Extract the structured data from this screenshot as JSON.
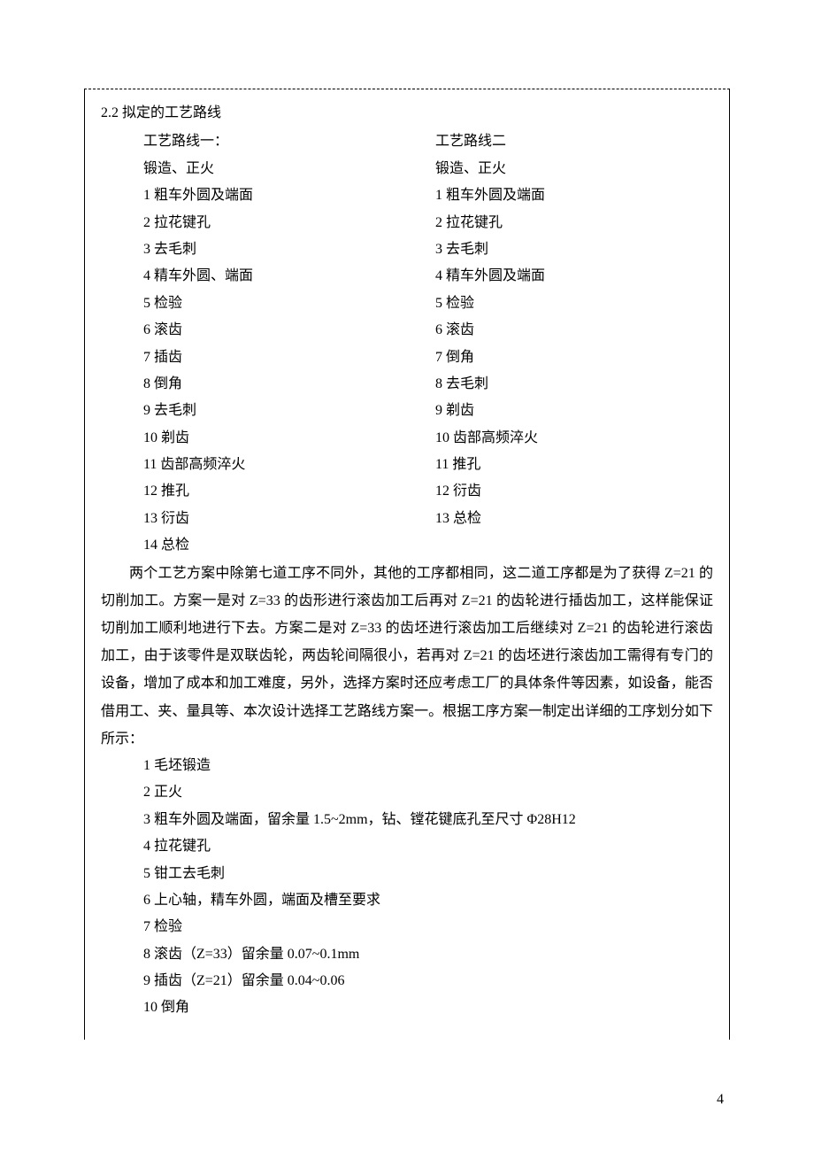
{
  "section_title": "2.2 拟定的工艺路线",
  "route1": {
    "heading": "工艺路线一：",
    "prep": "锻造、正火",
    "steps": [
      "1 粗车外圆及端面",
      "2 拉花键孔",
      "3 去毛刺",
      "4 精车外圆、端面",
      "5 检验",
      "6 滚齿",
      "7 插齿",
      "8 倒角",
      "9 去毛刺",
      "10 剃齿",
      "11 齿部高频淬火",
      "12 推孔",
      "13 衍齿",
      "14 总检"
    ]
  },
  "route2": {
    "heading": "工艺路线二",
    "prep": "锻造、正火",
    "steps": [
      "1 粗车外圆及端面",
      "2 拉花键孔",
      "3 去毛刺",
      "4 精车外圆及端面",
      "5 检验",
      "6 滚齿",
      "7 倒角",
      "8 去毛刺",
      "9 剃齿",
      "10 齿部高频淬火",
      "11 推孔",
      "12 衍齿",
      "13 总检"
    ]
  },
  "paragraph": "两个工艺方案中除第七道工序不同外，其他的工序都相同，这二道工序都是为了获得 Z=21 的切削加工。方案一是对 Z=33 的齿形进行滚齿加工后再对 Z=21 的齿轮进行插齿加工，这样能保证切削加工顺利地进行下去。方案二是对 Z=33 的齿坯进行滚齿加工后继续对 Z=21 的齿轮进行滚齿加工，由于该零件是双联齿轮，两齿轮间隔很小，若再对 Z=21 的齿坯进行滚齿加工需得有专门的设备，增加了成本和加工难度，另外，选择方案时还应考虑工厂的具体条件等因素，如设备，能否借用工、夹、量具等、本次设计选择工艺路线方案一。根据工序方案一制定出详细的工序划分如下所示：",
  "detailed_steps": [
    "1 毛坯锻造",
    "2 正火",
    "3 粗车外圆及端面，留余量 1.5~2mm，钻、镗花键底孔至尺寸 Φ28H12",
    "4 拉花键孔",
    "5 钳工去毛刺",
    "6 上心轴，精车外圆，端面及槽至要求",
    "7 检验",
    "8 滚齿（Z=33）留余量 0.07~0.1mm",
    "9 插齿（Z=21）留余量 0.04~0.06",
    "10 倒角"
  ],
  "page_number": "4",
  "colors": {
    "text": "#000000",
    "background": "#ffffff",
    "border": "#000000"
  },
  "typography": {
    "body_fontsize": 16,
    "font_family": "SimSun",
    "line_height": 1.9
  }
}
